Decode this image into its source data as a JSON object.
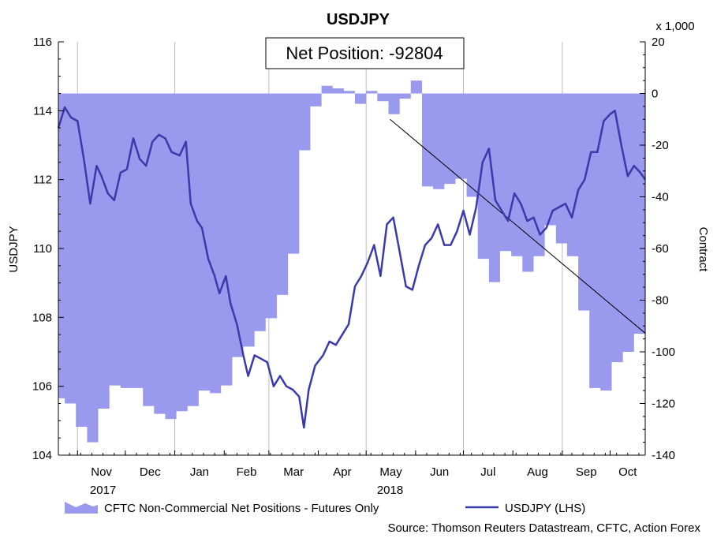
{
  "chart_data": {
    "type": "line",
    "title": "USDJPY",
    "left_axis": {
      "label": "USDJPY",
      "range": [
        104,
        116
      ],
      "ticks": [
        "104",
        "106",
        "108",
        "110",
        "112",
        "114",
        "116"
      ]
    },
    "right_axis": {
      "label": "Contract",
      "multiplier_label": "x 1,000",
      "range": [
        -140,
        20
      ],
      "ticks": [
        "-140",
        "-120",
        "-100",
        "-80",
        "-60",
        "-40",
        "-20",
        "0",
        "20"
      ]
    },
    "x_axis": {
      "range": [
        "2017-10-20",
        "2018-10-23"
      ],
      "month_ticks": [
        {
          "label": "Nov",
          "date": "2017-11-01"
        },
        {
          "label": "Dec",
          "date": "2017-12-01"
        },
        {
          "label": "Jan",
          "date": "2018-01-01"
        },
        {
          "label": "Feb",
          "date": "2018-02-01"
        },
        {
          "label": "Mar",
          "date": "2018-03-01"
        },
        {
          "label": "Apr",
          "date": "2018-04-01"
        },
        {
          "label": "May",
          "date": "2018-05-01"
        },
        {
          "label": "Jun",
          "date": "2018-06-01"
        },
        {
          "label": "Jul",
          "date": "2018-07-01"
        },
        {
          "label": "Aug",
          "date": "2018-08-01"
        },
        {
          "label": "Sep",
          "date": "2018-09-01"
        },
        {
          "label": "Oct",
          "date": "2018-10-01"
        }
      ],
      "year_labels": [
        {
          "label": "2017",
          "date": "2017-11-17"
        },
        {
          "label": "2018",
          "date": "2018-05-16"
        }
      ],
      "year_dividers": [
        "2017-11-01",
        "2018-01-01",
        "2018-03-01",
        "2018-05-01",
        "2018-07-01",
        "2018-09-01"
      ]
    },
    "series": [
      {
        "name": "CFTC Non-Commercial Net Positions - Futures Only",
        "axis": "right",
        "kind": "step-area",
        "color": "#9999ee",
        "x": [
          "2017-10-20",
          "2017-10-24",
          "2017-10-31",
          "2017-11-07",
          "2017-11-14",
          "2017-11-21",
          "2017-11-28",
          "2017-12-05",
          "2017-12-12",
          "2017-12-19",
          "2017-12-26",
          "2018-01-02",
          "2018-01-09",
          "2018-01-16",
          "2018-01-23",
          "2018-01-30",
          "2018-02-06",
          "2018-02-13",
          "2018-02-20",
          "2018-02-27",
          "2018-03-06",
          "2018-03-13",
          "2018-03-20",
          "2018-03-27",
          "2018-04-03",
          "2018-04-10",
          "2018-04-17",
          "2018-04-24",
          "2018-05-01",
          "2018-05-08",
          "2018-05-15",
          "2018-05-22",
          "2018-05-29",
          "2018-06-05",
          "2018-06-12",
          "2018-06-19",
          "2018-06-26",
          "2018-07-03",
          "2018-07-10",
          "2018-07-17",
          "2018-07-24",
          "2018-07-31",
          "2018-08-07",
          "2018-08-14",
          "2018-08-21",
          "2018-08-28",
          "2018-09-04",
          "2018-09-11",
          "2018-09-18",
          "2018-09-25",
          "2018-10-02",
          "2018-10-09",
          "2018-10-16",
          "2018-10-23"
        ],
        "values": [
          -118,
          -120,
          -129,
          -135,
          -122,
          -113,
          -114,
          -114,
          -121,
          -124,
          -126,
          -123,
          -121,
          -115,
          -116,
          -113,
          -102,
          -98,
          -92,
          -87,
          -78,
          -62,
          -22,
          -5,
          3,
          2,
          1,
          -4,
          1,
          -3,
          -8,
          -2,
          5,
          -36,
          -37,
          -35,
          -33,
          -40,
          -64,
          -73,
          -61,
          -63,
          -69,
          -63,
          -51,
          -58,
          -63,
          -84,
          -114,
          -115,
          -104,
          -100,
          -93,
          -92.804
        ]
      },
      {
        "name": "USDJPY (LHS)",
        "axis": "left",
        "kind": "line",
        "color": "#3a3aaa",
        "x": [
          "2017-10-20",
          "2017-10-24",
          "2017-10-28",
          "2017-11-01",
          "2017-11-05",
          "2017-11-09",
          "2017-11-13",
          "2017-11-16",
          "2017-11-20",
          "2017-11-24",
          "2017-11-28",
          "2017-12-02",
          "2017-12-06",
          "2017-12-10",
          "2017-12-14",
          "2017-12-18",
          "2017-12-22",
          "2017-12-26",
          "2017-12-30",
          "2018-01-04",
          "2018-01-08",
          "2018-01-11",
          "2018-01-15",
          "2018-01-18",
          "2018-01-22",
          "2018-01-26",
          "2018-01-29",
          "2018-02-02",
          "2018-02-05",
          "2018-02-09",
          "2018-02-13",
          "2018-02-16",
          "2018-02-20",
          "2018-02-24",
          "2018-02-28",
          "2018-03-04",
          "2018-03-08",
          "2018-03-12",
          "2018-03-16",
          "2018-03-20",
          "2018-03-23",
          "2018-03-26",
          "2018-03-30",
          "2018-04-04",
          "2018-04-08",
          "2018-04-12",
          "2018-04-16",
          "2018-04-20",
          "2018-04-24",
          "2018-04-28",
          "2018-05-02",
          "2018-05-06",
          "2018-05-10",
          "2018-05-14",
          "2018-05-18",
          "2018-05-22",
          "2018-05-26",
          "2018-05-30",
          "2018-06-03",
          "2018-06-07",
          "2018-06-11",
          "2018-06-15",
          "2018-06-19",
          "2018-06-23",
          "2018-06-27",
          "2018-07-01",
          "2018-07-05",
          "2018-07-09",
          "2018-07-13",
          "2018-07-17",
          "2018-07-21",
          "2018-07-25",
          "2018-07-29",
          "2018-08-02",
          "2018-08-06",
          "2018-08-10",
          "2018-08-14",
          "2018-08-18",
          "2018-08-22",
          "2018-08-26",
          "2018-08-30",
          "2018-09-03",
          "2018-09-07",
          "2018-09-11",
          "2018-09-15",
          "2018-09-19",
          "2018-09-23",
          "2018-09-27",
          "2018-10-01",
          "2018-10-04",
          "2018-10-08",
          "2018-10-12",
          "2018-10-16",
          "2018-10-20",
          "2018-10-23"
        ],
        "values": [
          113.5,
          114.1,
          113.8,
          113.7,
          112.6,
          111.3,
          112.4,
          112.1,
          111.6,
          111.4,
          112.2,
          112.3,
          113.2,
          112.6,
          112.4,
          113.1,
          113.3,
          113.2,
          112.8,
          112.7,
          113.1,
          111.3,
          110.8,
          110.6,
          109.7,
          109.2,
          108.7,
          109.2,
          108.4,
          107.8,
          106.9,
          106.3,
          106.9,
          106.8,
          106.7,
          106.0,
          106.3,
          106.0,
          105.9,
          105.7,
          104.8,
          105.9,
          106.6,
          106.9,
          107.3,
          107.2,
          107.5,
          107.8,
          108.9,
          109.2,
          109.6,
          110.1,
          109.2,
          110.7,
          110.9,
          109.9,
          108.9,
          108.8,
          109.5,
          110.1,
          110.3,
          110.7,
          110.1,
          110.1,
          110.5,
          111.1,
          110.4,
          111.2,
          112.5,
          112.9,
          111.4,
          111.1,
          110.8,
          111.6,
          111.3,
          110.8,
          110.9,
          110.4,
          110.6,
          111.1,
          111.2,
          111.3,
          110.9,
          111.7,
          112.0,
          112.8,
          112.8,
          113.7,
          113.9,
          114.0,
          113.0,
          112.1,
          112.4,
          112.2,
          112.0
        ]
      }
    ],
    "annotation": {
      "text": "Net Position: -92804",
      "trend_from": {
        "date": "2018-05-16",
        "value": -10
      },
      "trend_to": {
        "date": "2018-10-23",
        "value": -92.804
      }
    },
    "legend": {
      "placement": "bottom",
      "items": [
        "CFTC Non-Commercial Net Positions - Futures Only",
        "USDJPY (LHS)"
      ]
    },
    "source": "Source: Thomson Reuters Datastream, CFTC, Action Forex",
    "grid": false
  }
}
